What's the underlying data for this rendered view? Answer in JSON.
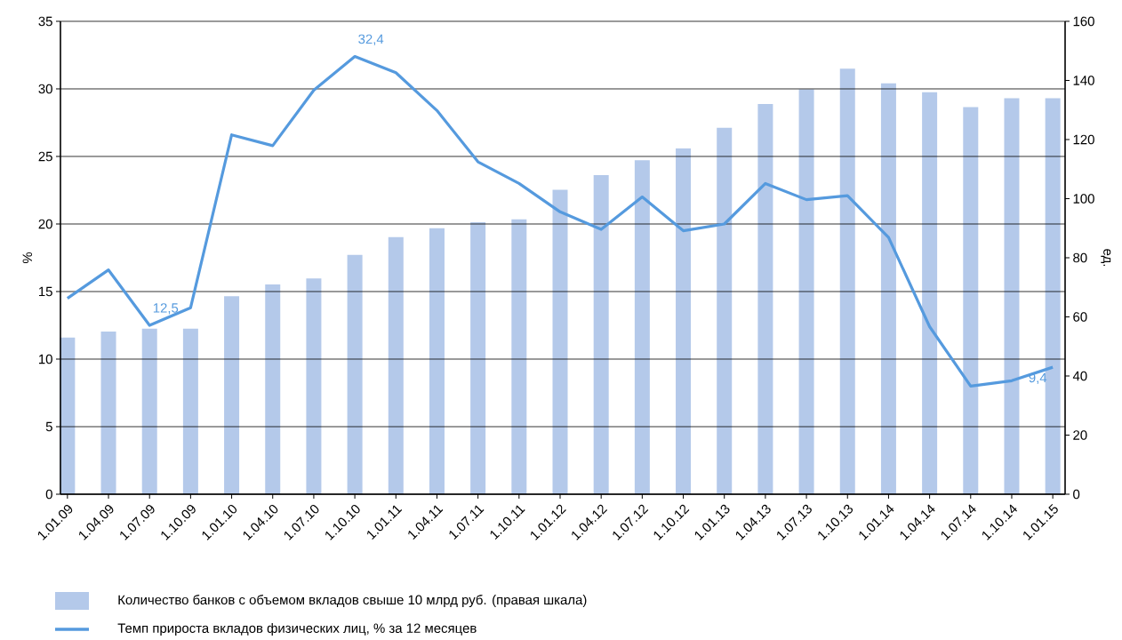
{
  "chart_data": {
    "type": "bar",
    "ylabel": "%",
    "y2label": "ед.",
    "categories": [
      "1.01.09",
      "1.04.09",
      "1.07.09",
      "1.10.09",
      "1.01.10",
      "1.04.10",
      "1.07.10",
      "1.10.10",
      "1.01.11",
      "1.04.11",
      "1.07.11",
      "1.10.11",
      "1.01.12",
      "1.04.12",
      "1.07.12",
      "1.10.12",
      "1.01.13",
      "1.04.13",
      "1.07.13",
      "1.10.13",
      "1.01.14",
      "1.04.14",
      "1.07.14",
      "1.10.14",
      "1.01.15"
    ],
    "series": [
      {
        "name": "Количество банков с объемом вкладов свыше 10 млрд руб. (правая шкала)",
        "axis": "y2",
        "color": "#b4c9ea",
        "values": [
          53,
          55,
          56,
          56,
          67,
          71,
          73,
          81,
          87,
          90,
          92,
          93,
          103,
          108,
          113,
          117,
          124,
          132,
          137,
          144,
          139,
          136,
          131,
          134,
          134
        ]
      },
      {
        "name": "Темп прироста вкладов физических лиц, % за 12 месяцев",
        "type": "line",
        "color": "#559ade",
        "values": [
          14.5,
          16.6,
          12.5,
          13.8,
          26.6,
          25.8,
          29.9,
          32.4,
          31.2,
          28.4,
          24.6,
          23.0,
          20.9,
          19.6,
          22.0,
          19.5,
          20.0,
          23.0,
          21.8,
          22.1,
          19.0,
          12.4,
          8.0,
          8.4,
          9.4
        ],
        "value_labels": [
          null,
          null,
          "12,5",
          null,
          null,
          null,
          null,
          "32,4",
          null,
          null,
          null,
          null,
          null,
          null,
          null,
          null,
          null,
          null,
          null,
          null,
          null,
          null,
          null,
          null,
          "9,4"
        ]
      }
    ],
    "ylim": [
      0,
      35
    ],
    "yticks": [
      0,
      5,
      10,
      15,
      20,
      25,
      30,
      35
    ],
    "y2lim": [
      0,
      160
    ],
    "y2ticks": [
      0,
      20,
      40,
      60,
      80,
      100,
      120,
      140,
      160
    ],
    "grid": "y",
    "legend": "bottom",
    "marker": "none",
    "line_style": "solid"
  }
}
